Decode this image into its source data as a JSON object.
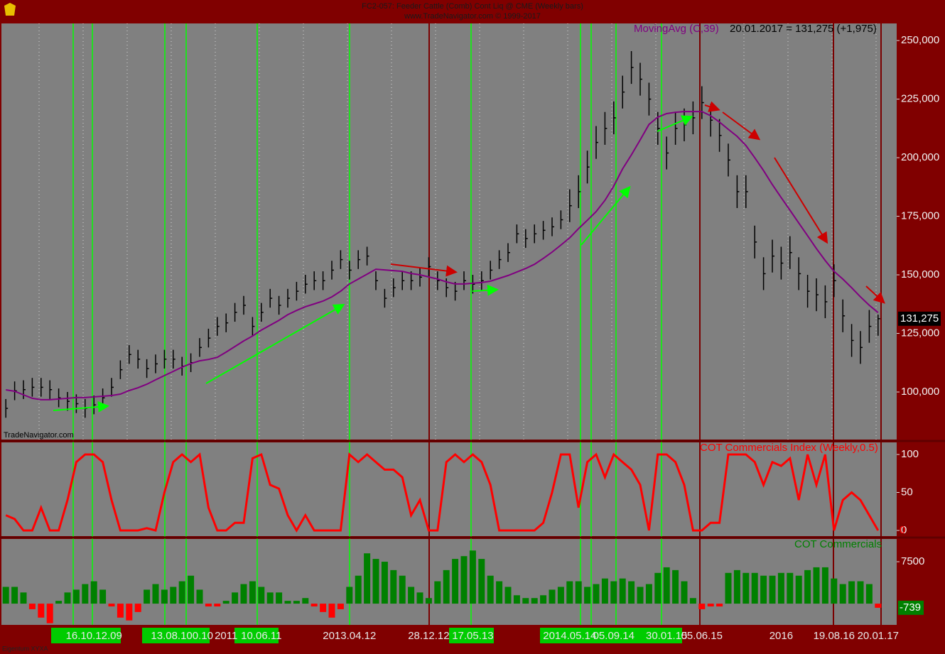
{
  "chart_data": [
    {
      "type": "ohlc",
      "title": "FC2-057: Feeder Cattle (Comb) Cont Liq @ CME (Weekly bars)",
      "subtitle": "www.TradeNavigator.com © 1999-2017",
      "watermark": "TradeNavigator.com",
      "annotation": "20.01.2017 = 131,275 (+1,975)",
      "color": "#000000",
      "high": [
        97000,
        104500,
        105000,
        106000,
        106000,
        105000,
        101500,
        100000,
        99000,
        97000,
        98500,
        101500,
        106000,
        113500,
        120000,
        118000,
        114000,
        116000,
        118000,
        118000,
        115000,
        116500,
        123000,
        127000,
        132000,
        133500,
        138000,
        141000,
        132000,
        138000,
        144000,
        141000,
        144000,
        147000,
        150000,
        151500,
        151500,
        156000,
        160500,
        156000,
        160500,
        162000,
        151500,
        144000,
        148500,
        151500,
        151500,
        153000,
        157500,
        151500,
        148500,
        147000,
        151500,
        150000,
        151500,
        156000,
        160500,
        163500,
        171500,
        169500,
        171500,
        173000,
        174500,
        177500,
        186500,
        192500,
        203000,
        213500,
        219500,
        224000,
        235000,
        245500,
        240500,
        232000,
        219500,
        209000,
        219500,
        221000,
        224000,
        230500,
        223000,
        216500,
        206000,
        192500,
        192500,
        171000,
        157500,
        165000,
        162000,
        166500,
        157500,
        150000,
        148500,
        145500,
        154500,
        139500,
        129000,
        126000,
        135000,
        133000
      ],
      "low": [
        89000,
        96500,
        97000,
        98000,
        98000,
        97000,
        93500,
        92000,
        91000,
        89000,
        90500,
        93500,
        98000,
        105500,
        112000,
        110000,
        106000,
        108000,
        110000,
        110000,
        107000,
        108500,
        115000,
        119000,
        124000,
        125500,
        130000,
        133000,
        124000,
        130000,
        136000,
        133000,
        136000,
        139000,
        142000,
        143500,
        143500,
        148000,
        152500,
        148000,
        152500,
        154000,
        143500,
        136000,
        140500,
        143500,
        143500,
        145000,
        149500,
        143500,
        140500,
        139000,
        143500,
        142000,
        143500,
        148000,
        152500,
        155500,
        163500,
        161500,
        163500,
        165000,
        166500,
        169500,
        172500,
        178500,
        189000,
        199500,
        205500,
        210000,
        221000,
        231500,
        226500,
        218000,
        205500,
        195000,
        205500,
        207000,
        210000,
        216500,
        209000,
        202500,
        192000,
        178500,
        178500,
        157000,
        143500,
        151000,
        148000,
        152500,
        143500,
        136000,
        134500,
        131500,
        140500,
        125500,
        115000,
        112000,
        121000,
        124000
      ],
      "close": [
        93000,
        100500,
        101000,
        102000,
        102000,
        101000,
        97500,
        96000,
        95000,
        93000,
        94500,
        97500,
        102000,
        109500,
        116000,
        114000,
        110000,
        112000,
        114000,
        114000,
        111000,
        112500,
        119000,
        123000,
        128000,
        129500,
        134000,
        137000,
        128000,
        134000,
        140000,
        137000,
        140000,
        143000,
        146000,
        147500,
        147500,
        152000,
        156500,
        152000,
        156500,
        158000,
        147500,
        140000,
        144500,
        147500,
        147500,
        149000,
        153500,
        147500,
        144500,
        143000,
        147500,
        146000,
        147500,
        152000,
        156500,
        159500,
        167500,
        165500,
        167500,
        169000,
        170500,
        173500,
        179500,
        185500,
        196000,
        206500,
        212500,
        217000,
        228000,
        238500,
        233500,
        225000,
        212500,
        202000,
        212500,
        214000,
        217000,
        223500,
        216000,
        209500,
        199000,
        185500,
        185500,
        164000,
        150500,
        158000,
        155000,
        159500,
        150500,
        143000,
        141500,
        138500,
        147500,
        132500,
        122000,
        119000,
        128000,
        131275
      ],
      "last_value_label": "131,275",
      "series": [
        {
          "name": "MovingAvg (C,39)",
          "color": "#800080",
          "values": [
            100900,
            100300,
            98800,
            97300,
            96700,
            96700,
            97000,
            97300,
            97600,
            97600,
            97900,
            98200,
            98500,
            99100,
            100600,
            101800,
            103300,
            105200,
            107000,
            108800,
            110600,
            112100,
            113300,
            113900,
            114800,
            117000,
            119400,
            121800,
            123900,
            126400,
            128500,
            130600,
            133000,
            134800,
            136400,
            137600,
            138800,
            140600,
            143000,
            146100,
            148200,
            150300,
            152400,
            152100,
            151800,
            151500,
            150600,
            150000,
            149100,
            148200,
            147000,
            146100,
            146100,
            146400,
            146700,
            147300,
            148500,
            149700,
            151200,
            152700,
            154500,
            157000,
            159700,
            162700,
            165800,
            169700,
            173300,
            177000,
            181800,
            187900,
            195200,
            201200,
            207600,
            214200,
            217300,
            218800,
            219400,
            219700,
            219700,
            219700,
            217900,
            215200,
            212100,
            209100,
            205200,
            200000,
            194500,
            188500,
            183000,
            177600,
            172100,
            166700,
            161200,
            156100,
            151500,
            148200,
            144500,
            140600,
            137000,
            133900
          ]
        }
      ],
      "ylim": [
        79700,
        257300
      ],
      "yticks": [
        {
          "value": 100000,
          "label": "100,000"
        },
        {
          "value": 125000,
          "label": "125,000"
        },
        {
          "value": 150000,
          "label": "150,000"
        },
        {
          "value": 175000,
          "label": "175,000"
        },
        {
          "value": 200000,
          "label": "200,000"
        },
        {
          "value": 225000,
          "label": "225,000"
        },
        {
          "value": 250000,
          "label": "250,000"
        }
      ],
      "grid": true
    },
    {
      "type": "line",
      "title": "COT Commercials Index (Weekly,0.5)",
      "color": "#ff0000",
      "values": [
        20,
        15,
        0,
        0,
        30,
        0,
        0,
        40,
        90,
        100,
        100,
        90,
        40,
        0,
        0,
        0,
        3,
        0,
        50,
        90,
        100,
        90,
        100,
        30,
        0,
        0,
        10,
        10,
        95,
        100,
        60,
        55,
        20,
        0,
        20,
        0,
        0,
        0,
        0,
        100,
        90,
        100,
        90,
        80,
        80,
        70,
        20,
        40,
        0,
        0,
        90,
        100,
        90,
        100,
        90,
        60,
        0,
        0,
        0,
        0,
        0,
        10,
        50,
        100,
        100,
        30,
        90,
        100,
        70,
        100,
        90,
        80,
        60,
        0,
        100,
        100,
        90,
        60,
        0,
        0,
        10,
        10,
        100,
        100,
        100,
        90,
        60,
        90,
        85,
        95,
        40,
        100,
        60,
        100,
        0,
        40,
        50,
        40,
        20,
        0
      ],
      "ylim": [
        -7.5,
        115.9
      ],
      "yticks": [
        0,
        50,
        100
      ]
    },
    {
      "type": "bar",
      "title": "COT Commercials",
      "footer": "Eigentum XYXA",
      "color": "#008000",
      "negative_color": "#ff0000",
      "categories": [
        null,
        null,
        null,
        null,
        null,
        null,
        null,
        null,
        null,
        null,
        "16.10.12.09",
        null,
        null,
        null,
        null,
        null,
        null,
        null,
        null,
        null,
        "13.08.100.10",
        null,
        null,
        null,
        null,
        "2011",
        null,
        null,
        null,
        "10.06.11",
        null,
        null,
        null,
        null,
        null,
        null,
        null,
        null,
        null,
        "2013.04.12",
        null,
        null,
        null,
        null,
        null,
        null,
        null,
        null,
        "28.12.12",
        null,
        null,
        null,
        null,
        "17.05.13",
        null,
        null,
        null,
        null,
        null,
        null,
        null,
        null,
        null,
        null,
        "2014.05.14",
        null,
        null,
        null,
        null,
        "05.09.14",
        null,
        null,
        null,
        null,
        null,
        "30.01.15",
        null,
        null,
        null,
        "05.06.15",
        null,
        null,
        null,
        null,
        null,
        null,
        null,
        null,
        "2016",
        null,
        null,
        null,
        null,
        null,
        "19.08.16",
        null,
        null,
        null,
        null,
        "20.01.17"
      ],
      "values": [
        3000,
        3000,
        2000,
        -1000,
        -2500,
        -3500,
        500,
        2000,
        2500,
        3500,
        4000,
        2500,
        -500,
        -2500,
        -3000,
        -1500,
        2500,
        3500,
        2500,
        3000,
        4000,
        5000,
        2500,
        -500,
        -500,
        500,
        2000,
        3500,
        4000,
        3000,
        2000,
        2000,
        500,
        500,
        1000,
        -500,
        -1500,
        -2500,
        -1000,
        3000,
        5000,
        9000,
        8000,
        7500,
        6000,
        5000,
        3000,
        2000,
        1000,
        4000,
        6000,
        8000,
        8500,
        9500,
        8000,
        5000,
        4000,
        3000,
        1500,
        1000,
        1000,
        1500,
        2500,
        3000,
        4000,
        4000,
        3000,
        3500,
        4500,
        4000,
        4500,
        4000,
        3000,
        3500,
        5500,
        6500,
        6000,
        4000,
        1000,
        -1000,
        -500,
        -500,
        5500,
        6000,
        5500,
        5500,
        5000,
        5000,
        5500,
        5500,
        5000,
        6000,
        6500,
        6500,
        4500,
        3500,
        4000,
        4000,
        3500,
        -739
      ],
      "ylim": [
        -3800,
        11570
      ],
      "yticks": [
        7500
      ]
    }
  ]
}
